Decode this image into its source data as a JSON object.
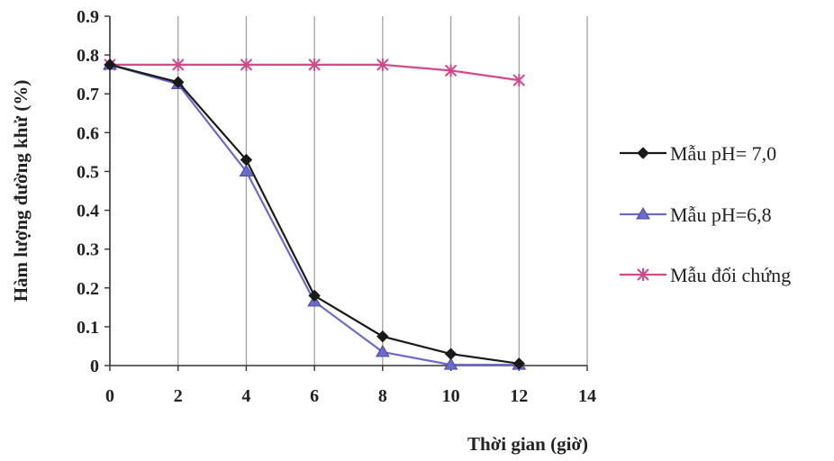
{
  "chart_data": {
    "type": "line",
    "xlabel": "Thời gian (giờ)",
    "ylabel": "Hàm lượng đường khử (%)",
    "xlim": [
      0,
      14
    ],
    "ylim": [
      0,
      0.9
    ],
    "x_ticks": [
      "0",
      "2",
      "4",
      "6",
      "8",
      "10",
      "12",
      "14"
    ],
    "y_ticks": [
      "0",
      "0.1",
      "0.2",
      "0.3",
      "0.4",
      "0.5",
      "0.6",
      "0.7",
      "0.8",
      "0.9"
    ],
    "grid": "vertical",
    "legend_position": "right",
    "x": [
      0,
      2,
      4,
      6,
      8,
      10,
      12
    ],
    "series": [
      {
        "name": "Mẫu pH= 7,0",
        "values": [
          0.775,
          0.73,
          0.53,
          0.18,
          0.075,
          0.03,
          0.005
        ],
        "color": "#1a1a1a",
        "marker": "diamond"
      },
      {
        "name": "Mẫu pH=6,8",
        "values": [
          0.775,
          0.725,
          0.5,
          0.165,
          0.035,
          0.002,
          0.002
        ],
        "color": "#6b6bc8",
        "marker": "triangle"
      },
      {
        "name": "Mẫu đối chứng",
        "values": [
          0.775,
          0.775,
          0.775,
          0.775,
          0.775,
          0.76,
          0.735
        ],
        "color": "#d04a8a",
        "marker": "asterisk"
      }
    ]
  }
}
